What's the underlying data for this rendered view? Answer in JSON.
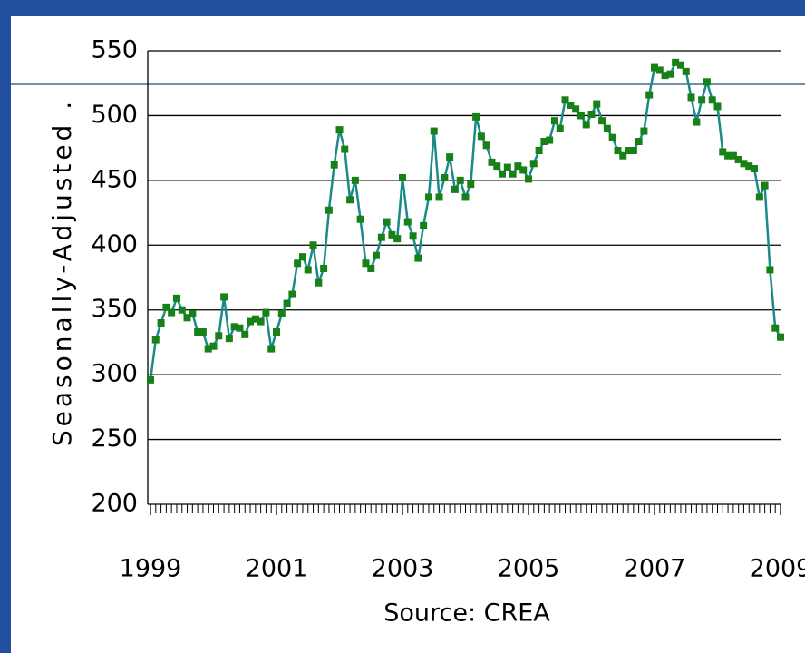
{
  "chart_data": {
    "type": "line",
    "y_label": "Seasonally-Adjusted .",
    "source": "Source:  CREA",
    "line_color": "#1a8a8a",
    "marker_color": "#178017",
    "grid": true,
    "xlim": [
      1999,
      2009
    ],
    "xticks": [
      1999,
      2001,
      2003,
      2005,
      2007,
      2009
    ],
    "ylim": [
      200,
      550
    ],
    "yticks": [
      200,
      250,
      300,
      350,
      400,
      450,
      500,
      550
    ],
    "x": [
      1999,
      1999.083,
      1999.167,
      1999.25,
      1999.333,
      1999.417,
      1999.5,
      1999.583,
      1999.667,
      1999.75,
      1999.833,
      1999.917,
      2000,
      2000.083,
      2000.167,
      2000.25,
      2000.333,
      2000.417,
      2000.5,
      2000.583,
      2000.667,
      2000.75,
      2000.833,
      2000.917,
      2001,
      2001.083,
      2001.167,
      2001.25,
      2001.333,
      2001.417,
      2001.5,
      2001.583,
      2001.667,
      2001.75,
      2001.833,
      2001.917,
      2002,
      2002.083,
      2002.167,
      2002.25,
      2002.333,
      2002.417,
      2002.5,
      2002.583,
      2002.667,
      2002.75,
      2002.833,
      2002.917,
      2003,
      2003.083,
      2003.167,
      2003.25,
      2003.333,
      2003.417,
      2003.5,
      2003.583,
      2003.667,
      2003.75,
      2003.833,
      2003.917,
      2004,
      2004.083,
      2004.167,
      2004.25,
      2004.333,
      2004.417,
      2004.5,
      2004.583,
      2004.667,
      2004.75,
      2004.833,
      2004.917,
      2005,
      2005.083,
      2005.167,
      2005.25,
      2005.333,
      2005.417,
      2005.5,
      2005.583,
      2005.667,
      2005.75,
      2005.833,
      2005.917,
      2006,
      2006.083,
      2006.167,
      2006.25,
      2006.333,
      2006.417,
      2006.5,
      2006.583,
      2006.667,
      2006.75,
      2006.833,
      2006.917,
      2007,
      2007.083,
      2007.167,
      2007.25,
      2007.333,
      2007.417,
      2007.5,
      2007.583,
      2007.667,
      2007.75,
      2007.833,
      2007.917,
      2008,
      2008.083,
      2008.167,
      2008.25,
      2008.333,
      2008.417,
      2008.5,
      2008.583,
      2008.667,
      2008.75,
      2008.833,
      2008.917,
      2009
    ],
    "values": [
      296,
      327,
      340,
      352,
      348,
      359,
      350,
      344,
      347,
      333,
      333,
      320,
      322,
      330,
      360,
      328,
      337,
      336,
      331,
      341,
      343,
      341,
      348,
      320,
      333,
      347,
      355,
      362,
      386,
      391,
      381,
      400,
      371,
      382,
      427,
      462,
      489,
      474,
      435,
      450,
      420,
      386,
      382,
      392,
      406,
      418,
      408,
      405,
      452,
      418,
      407,
      390,
      415,
      437,
      488,
      437,
      452,
      468,
      443,
      450,
      437,
      447,
      499,
      484,
      477,
      464,
      461,
      455,
      460,
      455,
      461,
      458,
      451,
      463,
      473,
      480,
      481,
      496,
      490,
      512,
      508,
      505,
      500,
      493,
      501,
      509,
      496,
      490,
      483,
      473,
      469,
      473,
      473,
      480,
      488,
      516,
      537,
      535,
      531,
      532,
      541,
      539,
      534,
      514,
      495,
      512,
      526,
      512,
      507,
      472,
      469,
      469,
      466,
      463,
      461,
      459,
      437,
      446,
      381,
      336,
      329
    ]
  }
}
